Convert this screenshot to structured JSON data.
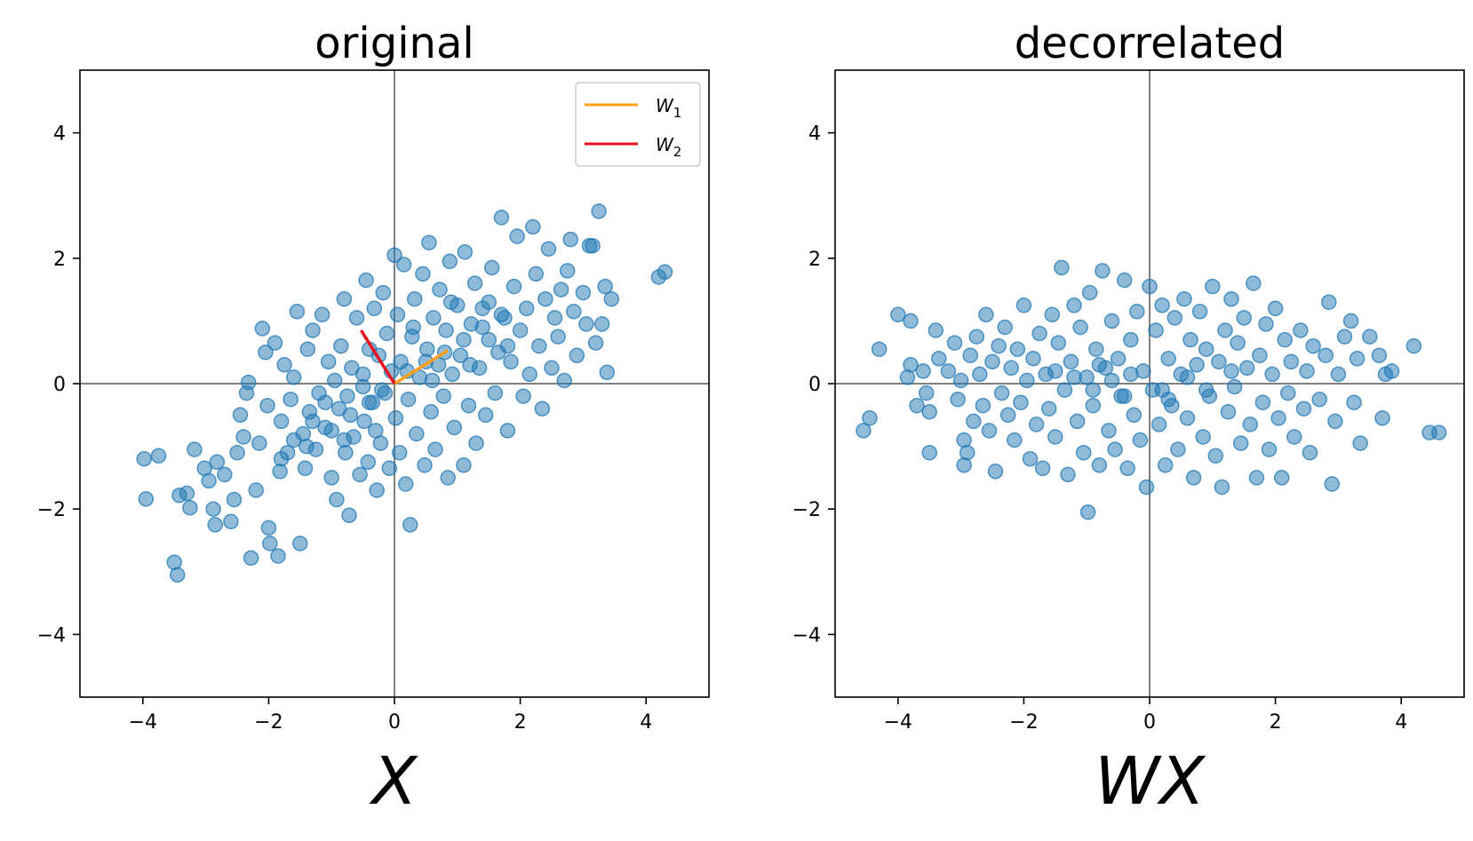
{
  "chart_data": [
    {
      "type": "scatter",
      "title": "original",
      "xlabel": "X",
      "ylabel": "",
      "xlim": [
        -5,
        5
      ],
      "ylim": [
        -5,
        5
      ],
      "xticks": [
        -4,
        -2,
        0,
        2,
        4
      ],
      "yticks": [
        -4,
        -2,
        0,
        2,
        4
      ],
      "grid": false,
      "zero_lines": true,
      "marker_color": "#1f77b4",
      "marker_alpha": 0.5,
      "legend": {
        "placement": "top-right",
        "entries": [
          {
            "label": "W",
            "subscript": "1",
            "color": "#ff9f1c"
          },
          {
            "label": "W",
            "subscript": "2",
            "color": "#e8111d"
          }
        ]
      },
      "vectors": [
        {
          "name": "W1",
          "color": "#ff9f1c",
          "x": [
            0,
            0.85
          ],
          "y": [
            0,
            0.53
          ]
        },
        {
          "name": "W2",
          "color": "#e8111d",
          "x": [
            0,
            -0.53
          ],
          "y": [
            0,
            0.85
          ]
        }
      ],
      "points": [
        [
          -3.98,
          -1.2
        ],
        [
          -3.95,
          -1.84
        ],
        [
          -3.75,
          -1.15
        ],
        [
          -3.5,
          -2.85
        ],
        [
          -3.45,
          -3.05
        ],
        [
          -3.42,
          -1.78
        ],
        [
          -3.3,
          -1.75
        ],
        [
          -3.25,
          -1.98
        ],
        [
          -3.18,
          -1.05
        ],
        [
          -3.02,
          -1.35
        ],
        [
          -2.95,
          -1.55
        ],
        [
          -2.88,
          -2.0
        ],
        [
          -2.85,
          -2.25
        ],
        [
          -2.82,
          -1.25
        ],
        [
          -2.7,
          -1.45
        ],
        [
          -2.6,
          -2.2
        ],
        [
          -2.55,
          -1.85
        ],
        [
          -2.5,
          -1.1
        ],
        [
          -2.45,
          -0.5
        ],
        [
          -2.4,
          -0.85
        ],
        [
          -2.35,
          -0.15
        ],
        [
          -2.32,
          0.02
        ],
        [
          -2.28,
          -2.78
        ],
        [
          -2.2,
          -1.7
        ],
        [
          -2.15,
          -0.95
        ],
        [
          -2.1,
          0.88
        ],
        [
          -2.05,
          0.5
        ],
        [
          -2.02,
          -0.35
        ],
        [
          -2.0,
          -2.3
        ],
        [
          -1.98,
          -2.55
        ],
        [
          -1.9,
          0.65
        ],
        [
          -1.85,
          -2.75
        ],
        [
          -1.82,
          -1.4
        ],
        [
          -1.8,
          -0.6
        ],
        [
          -1.75,
          0.3
        ],
        [
          -1.7,
          -1.1
        ],
        [
          -1.65,
          -0.25
        ],
        [
          -1.6,
          0.1
        ],
        [
          -1.55,
          1.15
        ],
        [
          -1.5,
          -2.55
        ],
        [
          -1.45,
          -0.8
        ],
        [
          -1.42,
          -1.35
        ],
        [
          -1.38,
          0.55
        ],
        [
          -1.35,
          -0.45
        ],
        [
          -1.3,
          0.85
        ],
        [
          -1.25,
          -1.05
        ],
        [
          -1.2,
          -0.15
        ],
        [
          -1.15,
          1.1
        ],
        [
          -1.1,
          -0.7
        ],
        [
          -1.05,
          0.35
        ],
        [
          -1.0,
          -1.5
        ],
        [
          -0.95,
          0.05
        ],
        [
          -0.92,
          -1.85
        ],
        [
          -0.88,
          -0.4
        ],
        [
          -0.85,
          0.6
        ],
        [
          -0.8,
          1.35
        ],
        [
          -0.78,
          -1.1
        ],
        [
          -0.75,
          -0.2
        ],
        [
          -0.72,
          -2.1
        ],
        [
          -0.68,
          0.25
        ],
        [
          -0.65,
          -0.85
        ],
        [
          -0.6,
          1.05
        ],
        [
          -0.55,
          -1.45
        ],
        [
          -0.5,
          0.15
        ],
        [
          -0.48,
          -0.6
        ],
        [
          -0.45,
          1.65
        ],
        [
          -0.42,
          -1.25
        ],
        [
          -0.4,
          0.55
        ],
        [
          -0.35,
          -0.3
        ],
        [
          -0.32,
          1.2
        ],
        [
          -0.28,
          -1.7
        ],
        [
          -0.25,
          0.45
        ],
        [
          -0.22,
          -0.95
        ],
        [
          -0.18,
          1.45
        ],
        [
          -0.15,
          -0.15
        ],
        [
          -0.12,
          0.8
        ],
        [
          -0.08,
          -1.35
        ],
        [
          -0.05,
          0.2
        ],
        [
          0.0,
          2.05
        ],
        [
          0.02,
          -0.55
        ],
        [
          0.05,
          1.1
        ],
        [
          0.08,
          -1.1
        ],
        [
          0.1,
          0.35
        ],
        [
          0.15,
          1.9
        ],
        [
          0.18,
          -1.6
        ],
        [
          0.22,
          -0.25
        ],
        [
          0.25,
          -2.25
        ],
        [
          0.28,
          0.75
        ],
        [
          0.32,
          1.35
        ],
        [
          0.35,
          -0.8
        ],
        [
          0.4,
          0.1
        ],
        [
          0.45,
          1.75
        ],
        [
          0.48,
          -1.3
        ],
        [
          0.52,
          0.55
        ],
        [
          0.55,
          2.25
        ],
        [
          0.58,
          -0.45
        ],
        [
          0.62,
          1.05
        ],
        [
          0.65,
          -1.05
        ],
        [
          0.7,
          0.3
        ],
        [
          0.72,
          1.5
        ],
        [
          0.78,
          -0.2
        ],
        [
          0.82,
          0.85
        ],
        [
          0.85,
          -1.5
        ],
        [
          0.88,
          1.95
        ],
        [
          0.92,
          0.15
        ],
        [
          0.95,
          -0.7
        ],
        [
          1.0,
          1.25
        ],
        [
          1.05,
          0.45
        ],
        [
          1.1,
          -1.3
        ],
        [
          1.12,
          2.1
        ],
        [
          1.18,
          -0.35
        ],
        [
          1.22,
          0.95
        ],
        [
          1.28,
          1.6
        ],
        [
          1.3,
          -0.95
        ],
        [
          1.35,
          0.25
        ],
        [
          1.4,
          1.2
        ],
        [
          1.45,
          -0.5
        ],
        [
          1.5,
          0.7
        ],
        [
          1.55,
          1.85
        ],
        [
          1.6,
          -0.15
        ],
        [
          1.65,
          0.5
        ],
        [
          1.7,
          2.65
        ],
        [
          1.75,
          1.05
        ],
        [
          1.8,
          -0.75
        ],
        [
          1.85,
          0.35
        ],
        [
          1.9,
          1.55
        ],
        [
          1.95,
          2.35
        ],
        [
          2.0,
          0.85
        ],
        [
          2.05,
          -0.2
        ],
        [
          2.1,
          1.2
        ],
        [
          2.15,
          0.15
        ],
        [
          2.2,
          2.5
        ],
        [
          2.25,
          1.75
        ],
        [
          2.3,
          0.6
        ],
        [
          2.35,
          -0.4
        ],
        [
          2.4,
          1.35
        ],
        [
          2.45,
          2.15
        ],
        [
          2.5,
          0.25
        ],
        [
          2.55,
          1.05
        ],
        [
          2.6,
          0.75
        ],
        [
          2.65,
          1.5
        ],
        [
          2.7,
          0.05
        ],
        [
          2.75,
          1.8
        ],
        [
          2.8,
          2.3
        ],
        [
          2.85,
          1.15
        ],
        [
          2.9,
          0.45
        ],
        [
          3.0,
          1.45
        ],
        [
          3.05,
          0.95
        ],
        [
          3.1,
          2.2
        ],
        [
          3.15,
          2.2
        ],
        [
          3.2,
          0.65
        ],
        [
          3.25,
          2.75
        ],
        [
          3.3,
          0.95
        ],
        [
          3.35,
          1.55
        ],
        [
          3.38,
          0.18
        ],
        [
          3.45,
          1.35
        ],
        [
          4.2,
          1.7
        ],
        [
          4.3,
          1.78
        ],
        [
          -1.6,
          -0.9
        ],
        [
          -1.3,
          -0.6
        ],
        [
          -1.0,
          -0.75
        ],
        [
          -0.7,
          -0.5
        ],
        [
          -0.4,
          -0.3
        ],
        [
          -0.2,
          -0.1
        ],
        [
          0.2,
          0.2
        ],
        [
          0.5,
          0.35
        ],
        [
          0.8,
          0.5
        ],
        [
          1.1,
          0.7
        ],
        [
          1.4,
          0.9
        ],
        [
          1.7,
          1.1
        ],
        [
          -1.8,
          -1.2
        ],
        [
          -1.4,
          -1.0
        ],
        [
          -1.1,
          -0.3
        ],
        [
          -0.8,
          -0.9
        ],
        [
          -0.5,
          -0.05
        ],
        [
          -0.3,
          -0.75
        ],
        [
          0.3,
          0.9
        ],
        [
          0.6,
          0.05
        ],
        [
          0.9,
          1.3
        ],
        [
          1.2,
          0.3
        ],
        [
          1.5,
          1.3
        ],
        [
          1.8,
          0.6
        ]
      ]
    },
    {
      "type": "scatter",
      "title": "decorrelated",
      "xlabel": "WX",
      "ylabel": "",
      "xlim": [
        -5,
        5
      ],
      "ylim": [
        -5,
        5
      ],
      "xticks": [
        -4,
        -2,
        0,
        2,
        4
      ],
      "yticks": [
        -4,
        -2,
        0,
        2,
        4
      ],
      "grid": false,
      "zero_lines": true,
      "marker_color": "#1f77b4",
      "marker_alpha": 0.5,
      "points": [
        [
          -4.55,
          -0.75
        ],
        [
          -4.45,
          -0.55
        ],
        [
          -4.3,
          0.55
        ],
        [
          -4.0,
          1.1
        ],
        [
          -3.85,
          0.1
        ],
        [
          -3.8,
          1.0
        ],
        [
          -3.8,
          0.3
        ],
        [
          -3.7,
          -0.35
        ],
        [
          -3.6,
          0.2
        ],
        [
          -3.55,
          -0.15
        ],
        [
          -3.5,
          -0.45
        ],
        [
          -3.5,
          -1.1
        ],
        [
          -3.4,
          0.85
        ],
        [
          -3.35,
          0.4
        ],
        [
          -3.2,
          0.2
        ],
        [
          -3.1,
          0.65
        ],
        [
          -3.05,
          -0.25
        ],
        [
          -3.0,
          0.05
        ],
        [
          -2.95,
          -0.9
        ],
        [
          -2.95,
          -1.3
        ],
        [
          -2.9,
          -1.1
        ],
        [
          -2.85,
          0.45
        ],
        [
          -2.8,
          -0.6
        ],
        [
          -2.75,
          0.75
        ],
        [
          -2.7,
          0.15
        ],
        [
          -2.65,
          -0.35
        ],
        [
          -2.6,
          1.1
        ],
        [
          -2.55,
          -0.75
        ],
        [
          -2.5,
          0.35
        ],
        [
          -2.45,
          -1.4
        ],
        [
          -2.4,
          0.6
        ],
        [
          -2.35,
          -0.15
        ],
        [
          -2.3,
          0.9
        ],
        [
          -2.25,
          -0.5
        ],
        [
          -2.2,
          0.25
        ],
        [
          -2.15,
          -0.9
        ],
        [
          -2.1,
          0.55
        ],
        [
          -2.05,
          -0.3
        ],
        [
          -2.0,
          1.25
        ],
        [
          -1.95,
          0.05
        ],
        [
          -1.9,
          -1.2
        ],
        [
          -1.85,
          0.4
        ],
        [
          -1.8,
          -0.65
        ],
        [
          -1.75,
          0.8
        ],
        [
          -1.7,
          -1.35
        ],
        [
          -1.65,
          0.15
        ],
        [
          -1.6,
          -0.4
        ],
        [
          -1.55,
          1.1
        ],
        [
          -1.5,
          -0.85
        ],
        [
          -1.45,
          0.65
        ],
        [
          -1.4,
          1.85
        ],
        [
          -1.35,
          -0.1
        ],
        [
          -1.3,
          -1.45
        ],
        [
          -1.25,
          0.35
        ],
        [
          -1.2,
          1.25
        ],
        [
          -1.15,
          -0.6
        ],
        [
          -1.1,
          0.9
        ],
        [
          -1.05,
          -1.1
        ],
        [
          -1.0,
          0.1
        ],
        [
          -0.98,
          -2.05
        ],
        [
          -0.95,
          1.45
        ],
        [
          -0.9,
          -0.35
        ],
        [
          -0.85,
          0.55
        ],
        [
          -0.8,
          -1.3
        ],
        [
          -0.75,
          1.8
        ],
        [
          -0.7,
          0.25
        ],
        [
          -0.65,
          -0.75
        ],
        [
          -0.6,
          1.0
        ],
        [
          -0.55,
          -1.05
        ],
        [
          -0.5,
          0.4
        ],
        [
          -0.45,
          -0.2
        ],
        [
          -0.4,
          1.65
        ],
        [
          -0.35,
          -1.35
        ],
        [
          -0.3,
          0.7
        ],
        [
          -0.25,
          -0.5
        ],
        [
          -0.2,
          1.15
        ],
        [
          -0.15,
          -0.9
        ],
        [
          -0.1,
          0.2
        ],
        [
          -0.05,
          -1.65
        ],
        [
          0.0,
          1.55
        ],
        [
          0.05,
          -0.1
        ],
        [
          0.1,
          0.85
        ],
        [
          0.15,
          -0.65
        ],
        [
          0.2,
          1.25
        ],
        [
          0.25,
          -1.3
        ],
        [
          0.3,
          0.4
        ],
        [
          0.35,
          -0.35
        ],
        [
          0.4,
          1.05
        ],
        [
          0.45,
          -1.05
        ],
        [
          0.5,
          0.15
        ],
        [
          0.55,
          1.35
        ],
        [
          0.6,
          -0.55
        ],
        [
          0.65,
          0.7
        ],
        [
          0.7,
          -1.5
        ],
        [
          0.75,
          0.3
        ],
        [
          0.8,
          1.15
        ],
        [
          0.85,
          -0.85
        ],
        [
          0.9,
          0.55
        ],
        [
          0.95,
          -0.2
        ],
        [
          1.0,
          1.55
        ],
        [
          1.05,
          -1.15
        ],
        [
          1.1,
          0.35
        ],
        [
          1.15,
          -1.65
        ],
        [
          1.2,
          0.85
        ],
        [
          1.25,
          -0.45
        ],
        [
          1.3,
          1.35
        ],
        [
          1.35,
          -0.05
        ],
        [
          1.4,
          0.65
        ],
        [
          1.45,
          -0.95
        ],
        [
          1.5,
          1.05
        ],
        [
          1.55,
          0.25
        ],
        [
          1.6,
          -0.65
        ],
        [
          1.65,
          1.6
        ],
        [
          1.7,
          -1.5
        ],
        [
          1.75,
          0.45
        ],
        [
          1.8,
          -0.3
        ],
        [
          1.85,
          0.95
        ],
        [
          1.9,
          -1.05
        ],
        [
          1.95,
          0.15
        ],
        [
          2.0,
          1.2
        ],
        [
          2.05,
          -0.55
        ],
        [
          2.1,
          -1.5
        ],
        [
          2.15,
          0.7
        ],
        [
          2.2,
          -0.15
        ],
        [
          2.25,
          0.35
        ],
        [
          2.3,
          -0.85
        ],
        [
          2.4,
          0.85
        ],
        [
          2.45,
          -0.4
        ],
        [
          2.5,
          0.2
        ],
        [
          2.55,
          -1.1
        ],
        [
          2.6,
          0.6
        ],
        [
          2.7,
          -0.25
        ],
        [
          2.8,
          0.45
        ],
        [
          2.85,
          1.3
        ],
        [
          2.9,
          -1.6
        ],
        [
          2.95,
          -0.6
        ],
        [
          3.0,
          0.15
        ],
        [
          3.1,
          0.75
        ],
        [
          3.2,
          1.0
        ],
        [
          3.25,
          -0.3
        ],
        [
          3.3,
          0.4
        ],
        [
          3.35,
          -0.95
        ],
        [
          3.5,
          0.75
        ],
        [
          3.65,
          0.45
        ],
        [
          3.7,
          -0.55
        ],
        [
          3.75,
          0.15
        ],
        [
          3.85,
          0.2
        ],
        [
          4.2,
          0.6
        ],
        [
          4.45,
          -0.78
        ],
        [
          4.6,
          -0.78
        ],
        [
          -1.2,
          0.1
        ],
        [
          -0.9,
          -0.1
        ],
        [
          -0.6,
          0.05
        ],
        [
          -0.3,
          0.15
        ],
        [
          0.2,
          -0.1
        ],
        [
          0.6,
          0.1
        ],
        [
          -1.5,
          0.2
        ],
        [
          -0.8,
          0.3
        ],
        [
          -0.4,
          -0.2
        ],
        [
          0.3,
          -0.25
        ],
        [
          0.9,
          -0.1
        ],
        [
          1.3,
          0.2
        ]
      ]
    }
  ]
}
